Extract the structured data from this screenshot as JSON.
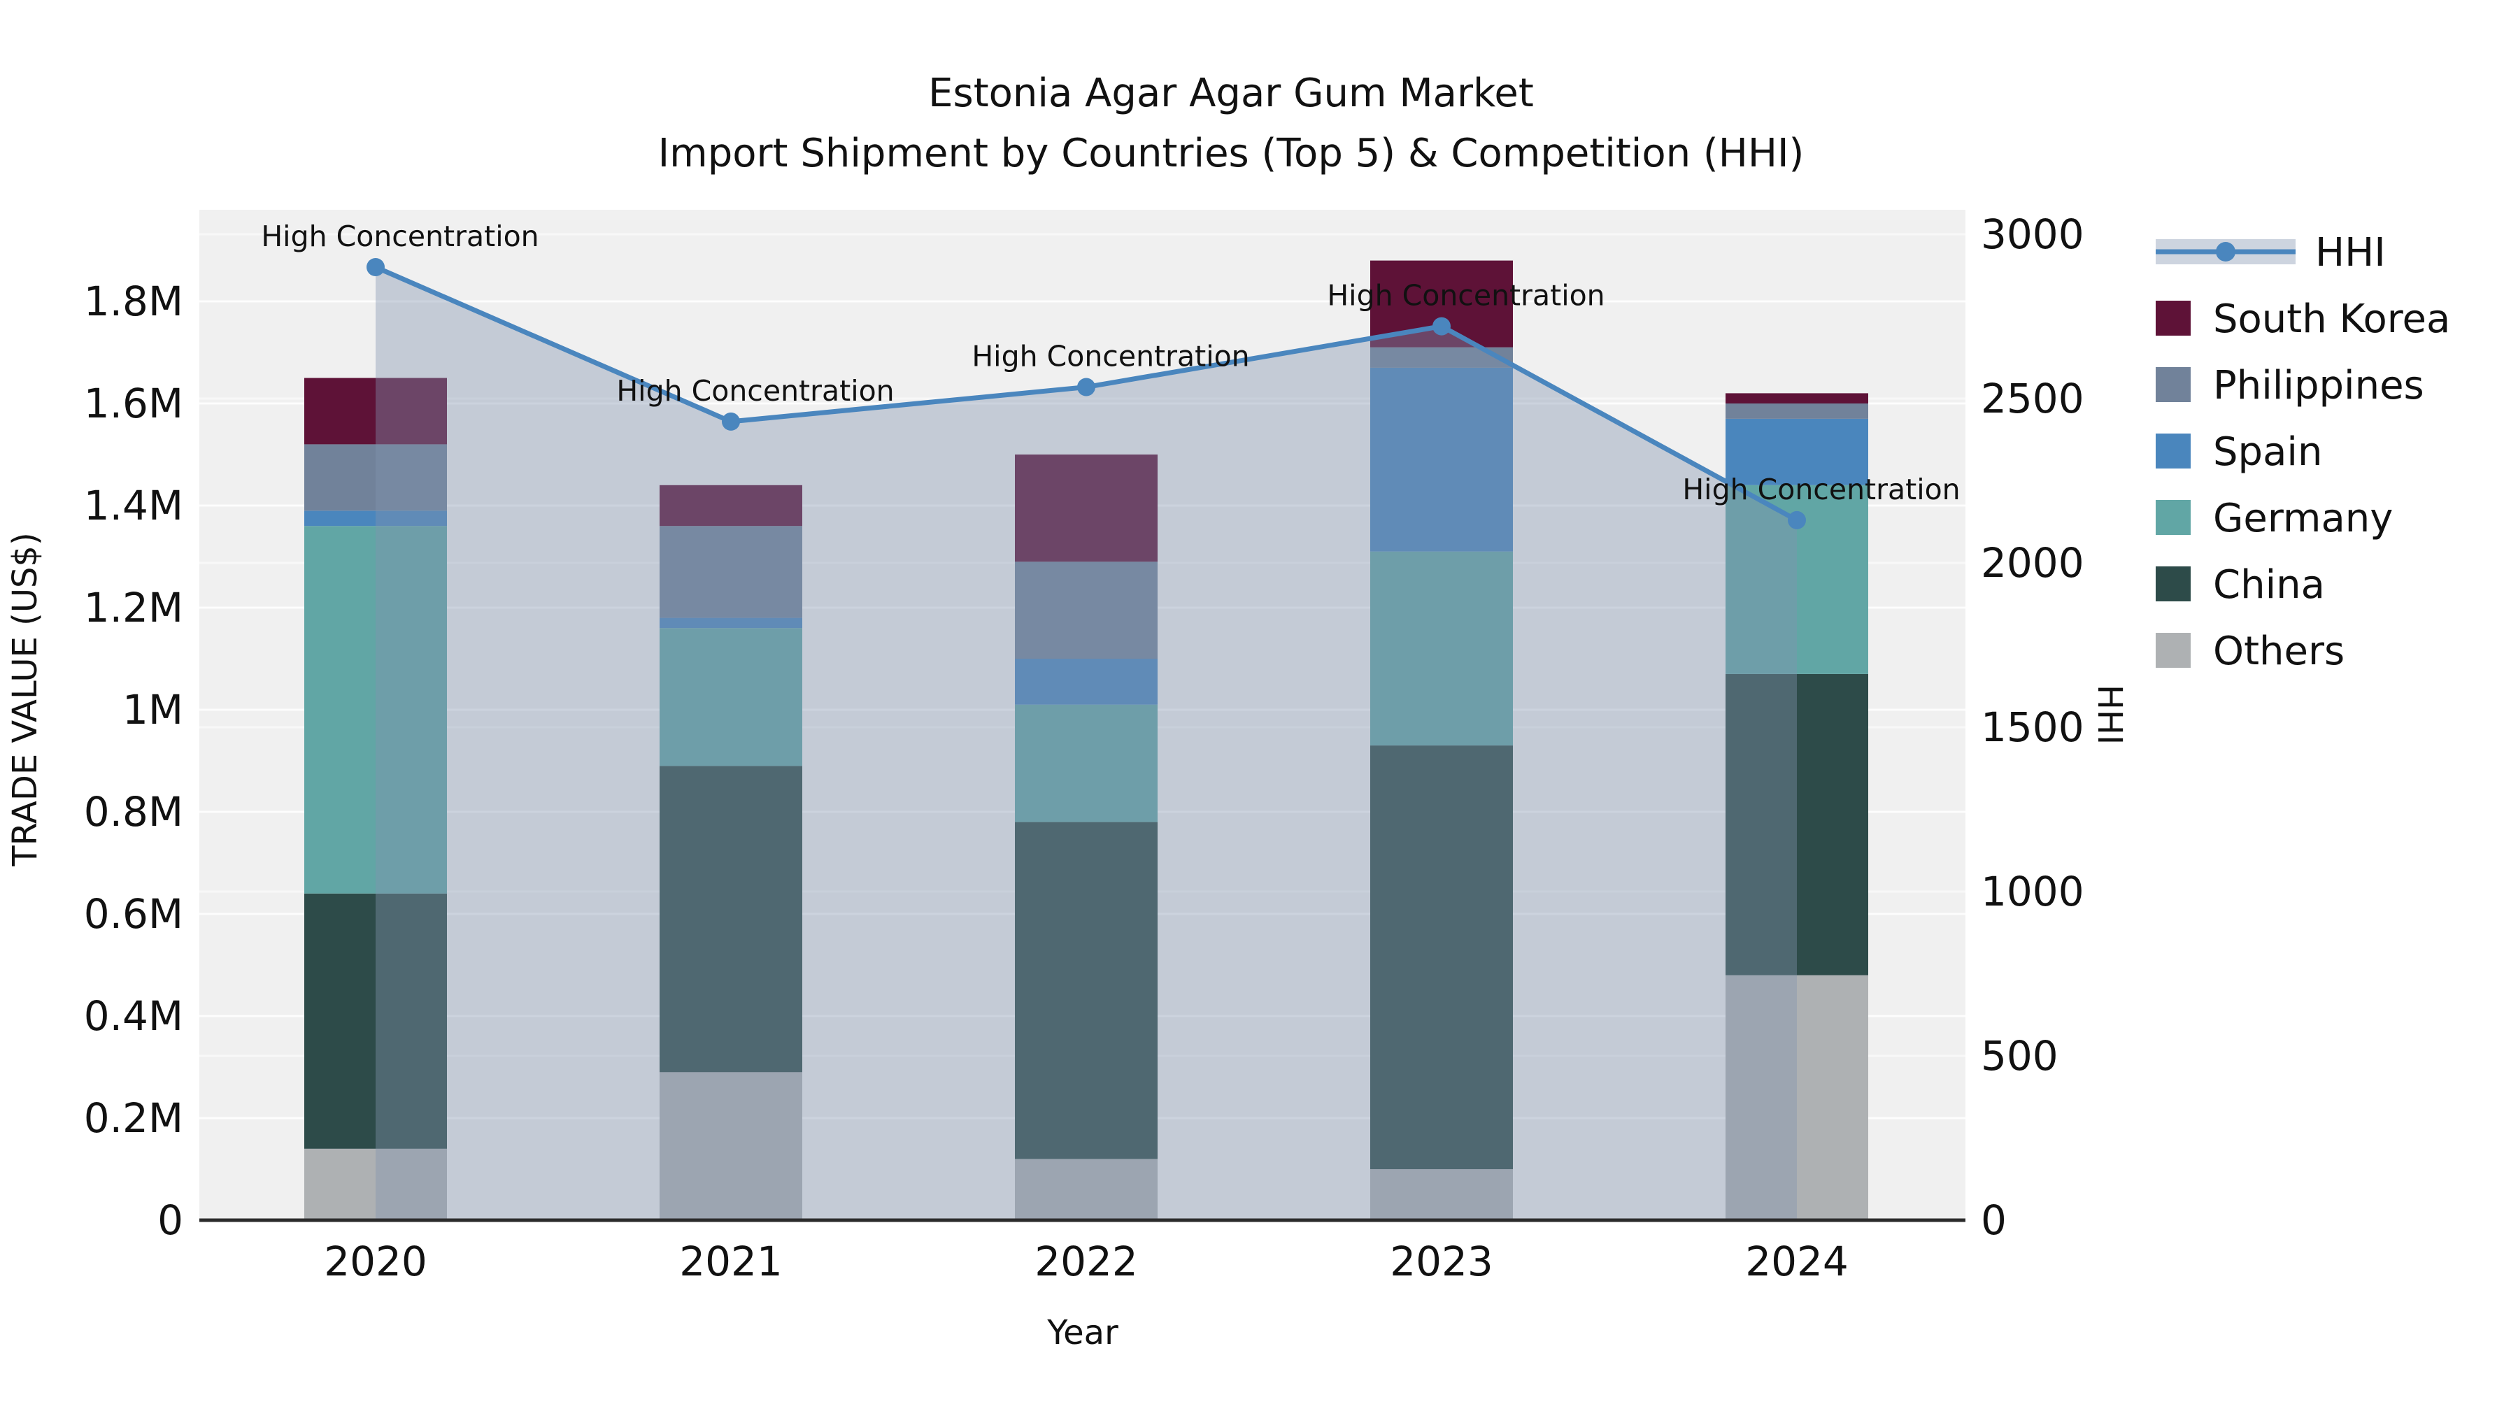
{
  "title": {
    "line1": "Estonia Agar Agar Gum Market",
    "line2": "Import Shipment by Countries (Top 5) & Competition (HHI)"
  },
  "axes": {
    "x": {
      "label": "Year"
    },
    "y_left": {
      "label": "TRADE VALUE (US$)"
    },
    "y_right": {
      "label": "HHI"
    }
  },
  "annotation_label": "High Concentration",
  "colors": {
    "plot_background": "#f0f0f0",
    "figure_background": "#ffffff",
    "gridline": "#ffffff",
    "axis_line": "#2b2b2b",
    "hhi_line": "#4a86be",
    "hhi_area_fill": "rgba(130,148,175,0.40)",
    "south_korea": "#5e1237",
    "philippines": "#71829a",
    "spain": "#4a86bd",
    "germany": "#61a6a5",
    "china": "#2d4b49",
    "others": "#aeb1b3"
  },
  "legend": {
    "items": [
      {
        "label": "HHI",
        "type": "line",
        "color": "#4a86be"
      },
      {
        "label": "South Korea",
        "type": "patch",
        "color": "#5e1237"
      },
      {
        "label": "Philippines",
        "type": "patch",
        "color": "#71829a"
      },
      {
        "label": "Spain",
        "type": "patch",
        "color": "#4a86bd"
      },
      {
        "label": "Germany",
        "type": "patch",
        "color": "#61a6a5"
      },
      {
        "label": "China",
        "type": "patch",
        "color": "#2d4b49"
      },
      {
        "label": "Others",
        "type": "patch",
        "color": "#aeb1b3"
      }
    ]
  },
  "chart_data": {
    "type": "bar+line",
    "title": "Estonia Agar Agar Gum Market — Import Shipment by Countries (Top 5) & Competition (HHI)",
    "categories": [
      "2020",
      "2021",
      "2022",
      "2023",
      "2024"
    ],
    "bar_unit": "Trade value, millions of US$",
    "stack_order_bottom_to_top": [
      "Others",
      "China",
      "Germany",
      "Spain",
      "Philippines",
      "South Korea"
    ],
    "series": [
      {
        "name": "Others",
        "color": "#aeb1b3",
        "values": [
          0.14,
          0.29,
          0.12,
          0.1,
          0.48
        ]
      },
      {
        "name": "China",
        "color": "#2d4b49",
        "values": [
          0.5,
          0.6,
          0.66,
          0.83,
          0.59
        ]
      },
      {
        "name": "Germany",
        "color": "#61a6a5",
        "values": [
          0.72,
          0.27,
          0.23,
          0.38,
          0.37
        ]
      },
      {
        "name": "Spain",
        "color": "#4a86bd",
        "values": [
          0.03,
          0.02,
          0.09,
          0.36,
          0.13
        ]
      },
      {
        "name": "Philippines",
        "color": "#71829a",
        "values": [
          0.13,
          0.18,
          0.19,
          0.04,
          0.03
        ]
      },
      {
        "name": "South Korea",
        "color": "#5e1237",
        "values": [
          0.13,
          0.08,
          0.21,
          0.17,
          0.02
        ]
      }
    ],
    "bar_totals": [
      1.65,
      1.44,
      1.5,
      1.88,
      1.62
    ],
    "line_series": {
      "name": "HHI",
      "color": "#4a86be",
      "values": [
        2900,
        2430,
        2535,
        2720,
        2130
      ],
      "area_under_line": true,
      "point_annotations": [
        "High Concentration",
        "High Concentration",
        "High Concentration",
        "High Concentration",
        "High Concentration"
      ]
    },
    "xlabel": "Year",
    "y_left": {
      "label": "TRADE VALUE (US$)",
      "tick_values": [
        0,
        0.2,
        0.4,
        0.6,
        0.8,
        1.0,
        1.2,
        1.4,
        1.6,
        1.8
      ],
      "tick_labels": [
        "0",
        "0.2M",
        "0.4M",
        "0.6M",
        "0.8M",
        "1M",
        "1.2M",
        "1.4M",
        "1.6M",
        "1.8M"
      ],
      "range": [
        0,
        1.98
      ]
    },
    "y_right": {
      "label": "HHI",
      "tick_values": [
        0,
        500,
        1000,
        1500,
        2000,
        2500,
        3000
      ],
      "tick_labels": [
        "0",
        "500",
        "1000",
        "1500",
        "2000",
        "2500",
        "3000"
      ],
      "range": [
        0,
        3074
      ]
    },
    "grid": true,
    "legend_position": "outside-right"
  }
}
